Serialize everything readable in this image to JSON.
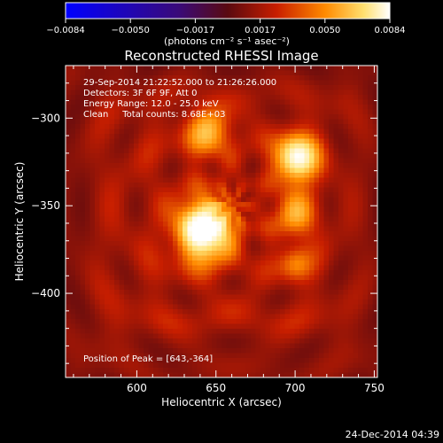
{
  "chart_data": {
    "type": "heatmap",
    "title": "Reconstructed RHESSI Image",
    "xlabel": "Heliocentric X (arcsec)",
    "ylabel": "Heliocentric Y (arcsec)",
    "xlim": [
      555,
      752
    ],
    "ylim": [
      -448,
      -270
    ],
    "xticks": [
      {
        "value": 600,
        "label": "600"
      },
      {
        "value": 650,
        "label": "650"
      },
      {
        "value": 700,
        "label": "700"
      },
      {
        "value": 750,
        "label": "750"
      }
    ],
    "yticks": [
      {
        "value": -300,
        "label": "−300"
      },
      {
        "value": -350,
        "label": "−350"
      },
      {
        "value": -400,
        "label": "−400"
      }
    ],
    "colorbar": {
      "range": [
        -0.0084,
        0.0084
      ],
      "ticks": [
        "−0.0084",
        "−0.0050",
        "−0.0017",
        "0.0017",
        "0.0050",
        "0.0084"
      ],
      "unit_label": "(photons cm⁻² s⁻¹ asec⁻²)",
      "colors": [
        "#0000ff",
        "#3a0a78",
        "#5a0a10",
        "#c81e00",
        "#ff8a00",
        "#ffe070",
        "#ffffff"
      ]
    },
    "sources": [
      {
        "x": 643,
        "y": -364,
        "peak": 1.0
      },
      {
        "x": 701,
        "y": -323,
        "peak": 0.85
      },
      {
        "x": 645,
        "y": -307,
        "peak": 0.45
      },
      {
        "x": 700,
        "y": -355,
        "peak": 0.4
      },
      {
        "x": 700,
        "y": -383,
        "peak": 0.3
      }
    ],
    "annotations": [
      "29-Sep-2014 21:22:52.000 to 21:26:26.000",
      "Detectors: 3F 6F 9F, Att 0",
      "Energy Range: 12.0 - 25.0 keV",
      "Clean     Total counts: 8.68E+03"
    ],
    "peak_label": "Position of Peak = [643,-364]"
  },
  "footer": {
    "date": "24-Dec-2014 04:39"
  }
}
